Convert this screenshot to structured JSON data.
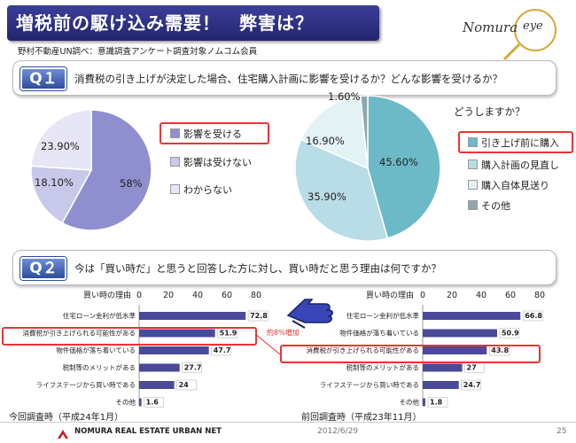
{
  "slide": {
    "title": "増税前の駆け込み需要！　弊害は？",
    "source": "野村不動産UN調べ：意識調査アンケート調査対象ノムコム会員",
    "logo_brand": "Nomura",
    "logo_eye": "eye",
    "date": "2012/6/29",
    "page_number": "25",
    "footer_company": "NOMURA REAL ESTATE URBAN NET",
    "current_survey_label": "今回調査時（平成24年1月）",
    "previous_survey_label": "前回調査時（平成23年11月）"
  },
  "q1": {
    "badge": "Q１",
    "question": "消費税の引き上げが決定した場合、住宅購入計画に影響を受けるか？どんな影響を受けるか？",
    "subquestion": "どうしますか？"
  },
  "q2": {
    "badge": "Q２",
    "question": "今は「買い時だ」と思うと回答した方に対し、買い時だと思う理由は何ですか？",
    "annotation": "約8%増加"
  },
  "colors": {
    "pie1": [
      "#8f8fd0",
      "#c8c8ea",
      "#e6e6f6"
    ],
    "pie2": [
      "#6cb9c8",
      "#b8dde6",
      "#e3f2f5",
      "#8fa8b0"
    ],
    "bar": "#4a4a9a",
    "highlight": "#e33333",
    "title_bg": "#2b2d80"
  },
  "chart_data": [
    {
      "type": "pie",
      "slices": [
        {
          "label": "影響を受ける",
          "value": 58,
          "display": "58%"
        },
        {
          "label": "影響は受けない",
          "value": 18.1,
          "display": "18.10%"
        },
        {
          "label": "わからない",
          "value": 23.9,
          "display": "23.90%"
        }
      ]
    },
    {
      "type": "pie",
      "slices": [
        {
          "label": "引き上げ前に購入",
          "value": 45.6,
          "display": "45.60%"
        },
        {
          "label": "購入計画の見直し",
          "value": 35.9,
          "display": "35.90%"
        },
        {
          "label": "購入自体見送り",
          "value": 16.9,
          "display": "16.90%"
        },
        {
          "label": "その他",
          "value": 1.6,
          "display": "1.60%"
        }
      ]
    },
    {
      "type": "bar",
      "ylabel": "買い時の理由",
      "xlim": [
        0,
        80
      ],
      "ticks": [
        "0",
        "20",
        "40",
        "60",
        "80"
      ],
      "categories": [
        "住宅ローン金利が低水準",
        "消費税が引き上げられる可能性がある",
        "物件価格が落ち着いている",
        "税制等のメリットがある",
        "ライフステージから買い時である",
        "その他"
      ],
      "values": [
        72.8,
        51.9,
        47.7,
        27.7,
        24,
        1.6
      ],
      "value_labels": [
        "72.8",
        "51.9",
        "47.7",
        "27.7",
        "24",
        "1.6"
      ]
    },
    {
      "type": "bar",
      "ylabel": "買い時の理由",
      "xlim": [
        0,
        80
      ],
      "ticks": [
        "0",
        "20",
        "40",
        "60",
        "80"
      ],
      "categories": [
        "住宅ローン金利が低水準",
        "物件価格が落ち着いている",
        "消費税が引き上げられる可能性がある",
        "税制等のメリットがある",
        "ライフステージから買い時である",
        "その他"
      ],
      "values": [
        66.8,
        50.9,
        43.8,
        27,
        24.7,
        1.8
      ],
      "value_labels": [
        "66.8",
        "50.9",
        "43.8",
        "27",
        "24.7",
        "1.8"
      ]
    }
  ]
}
